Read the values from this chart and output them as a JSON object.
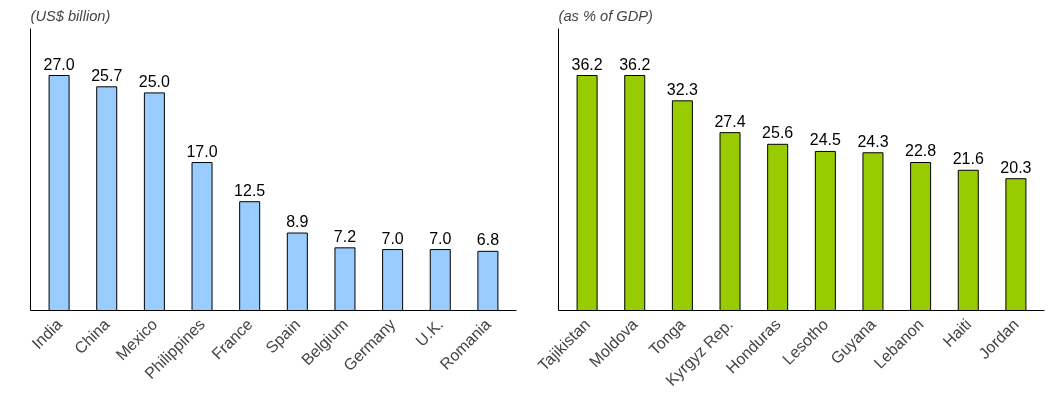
{
  "chart_data": [
    {
      "type": "bar",
      "title": "(US$ billion)",
      "categories": [
        "India",
        "China",
        "Mexico",
        "Philippines",
        "France",
        "Spain",
        "Belgium",
        "Germany",
        "U.K.",
        "Romania"
      ],
      "values": [
        27.0,
        25.7,
        25.0,
        17.0,
        12.5,
        8.9,
        7.2,
        7.0,
        7.0,
        6.8
      ],
      "value_labels": [
        "27.0",
        "25.7",
        "25.0",
        "17.0",
        "12.5",
        "8.9",
        "7.2",
        "7.0",
        "7.0",
        "6.8"
      ],
      "color": "#99ccff"
    },
    {
      "type": "bar",
      "title": "(as % of GDP)",
      "categories": [
        "Tajikistan",
        "Moldova",
        "Tonga",
        "Kyrgyz Rep.",
        "Honduras",
        "Lesotho",
        "Guyana",
        "Lebanon",
        "Haiti",
        "Jordan"
      ],
      "values": [
        36.2,
        36.2,
        32.3,
        27.4,
        25.6,
        24.5,
        24.3,
        22.8,
        21.6,
        20.3
      ],
      "value_labels": [
        "36.2",
        "36.2",
        "32.3",
        "27.4",
        "25.6",
        "24.5",
        "24.3",
        "22.8",
        "21.6",
        "20.3"
      ],
      "color": "#99cc00"
    }
  ]
}
